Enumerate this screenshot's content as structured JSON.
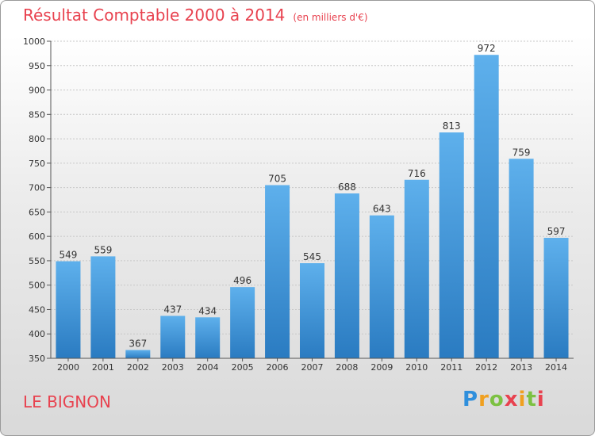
{
  "chart_data": {
    "type": "bar",
    "title": "Résultat Comptable 2000 à 2014",
    "subtitle": "(en milliers d'€)",
    "categories": [
      "2000",
      "2001",
      "2002",
      "2003",
      "2004",
      "2005",
      "2006",
      "2007",
      "2008",
      "2009",
      "2010",
      "2011",
      "2012",
      "2013",
      "2014"
    ],
    "values": [
      549,
      559,
      367,
      437,
      434,
      496,
      705,
      545,
      688,
      643,
      716,
      813,
      972,
      759,
      597
    ],
    "ylim": [
      350,
      1000
    ],
    "yticks": [
      350,
      400,
      450,
      500,
      550,
      600,
      650,
      700,
      750,
      800,
      850,
      900,
      950,
      1000
    ],
    "xlabel": "",
    "ylabel": "",
    "grid": true
  },
  "commune": "LE BIGNON",
  "logo": {
    "letters": [
      "P",
      "r",
      "o",
      "x",
      "i",
      "t",
      "i"
    ],
    "colors": [
      "#2f8fdc",
      "#f0a020",
      "#7cc142",
      "#e8424f",
      "#f0a020",
      "#7cc142",
      "#e8424f"
    ]
  },
  "colors": {
    "title": "#e8424f",
    "bar_light": "#5eb0ec",
    "bar_dark": "#2a7bc1"
  }
}
